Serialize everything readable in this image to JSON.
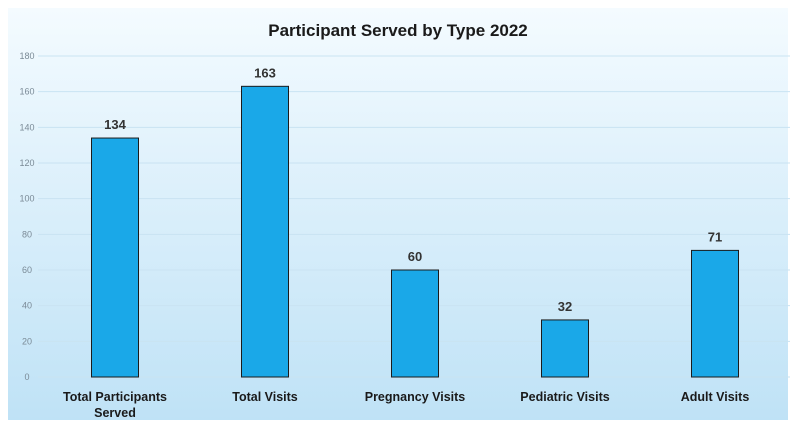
{
  "chart_data": {
    "type": "bar",
    "title": "Participant Served by Type 2022",
    "categories": [
      [
        "Total Participants",
        "Served"
      ],
      [
        "Total Visits"
      ],
      [
        "Pregnancy Visits"
      ],
      [
        "Pediatric Visits"
      ],
      [
        "Adult Visits"
      ]
    ],
    "values": [
      134,
      163,
      60,
      32,
      71
    ],
    "data_labels": [
      "134",
      "163",
      "60",
      "32",
      "71"
    ],
    "yticks": [
      0,
      20,
      40,
      60,
      80,
      100,
      120,
      140,
      160,
      180
    ],
    "ylim": [
      0,
      180
    ],
    "grid": true,
    "bar_color": "#1aa8e8",
    "bar_border_color": "#1b1b1b",
    "background_top": "#f4fbff",
    "background_bottom": "#bfe2f6"
  }
}
